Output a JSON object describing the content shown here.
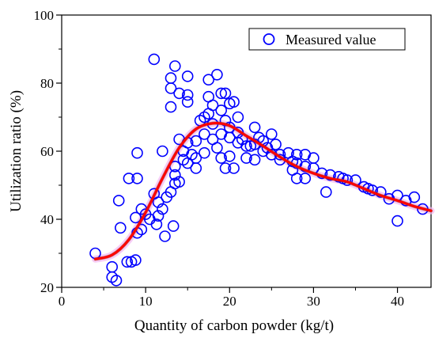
{
  "chart_data": {
    "type": "scatter",
    "title": "",
    "xlabel": "Quantity of carbon powder (kg/t)",
    "ylabel": "Utilization ratio (%)",
    "xlim": [
      0,
      44
    ],
    "ylim": [
      20,
      100
    ],
    "xticks": [
      "0",
      "10",
      "20",
      "30",
      "40"
    ],
    "yticks": [
      "20",
      "40",
      "60",
      "80",
      "100"
    ],
    "grid": false,
    "legend_position": "top-right",
    "colors": {
      "points": "#0000ff",
      "fit": "#ff0000",
      "band": "#f4b6f2"
    },
    "series": [
      {
        "name": "Measured value",
        "points": [
          [
            4,
            30
          ],
          [
            6,
            26
          ],
          [
            6,
            23
          ],
          [
            6.5,
            22
          ],
          [
            6.8,
            45.5
          ],
          [
            7,
            37.5
          ],
          [
            7.8,
            27.5
          ],
          [
            8,
            52
          ],
          [
            8.3,
            27.5
          ],
          [
            8.8,
            28
          ],
          [
            8.8,
            40.5
          ],
          [
            9,
            52
          ],
          [
            9,
            59.5
          ],
          [
            9,
            36
          ],
          [
            9.5,
            37
          ],
          [
            9.5,
            43
          ],
          [
            10,
            41.5
          ],
          [
            10.5,
            40
          ],
          [
            11,
            87
          ],
          [
            11,
            47.5
          ],
          [
            11.3,
            38.5
          ],
          [
            11.5,
            41
          ],
          [
            11.5,
            45
          ],
          [
            12,
            60
          ],
          [
            12,
            43
          ],
          [
            12.3,
            35
          ],
          [
            12.5,
            46.5
          ],
          [
            13,
            81.5
          ],
          [
            13,
            78.5
          ],
          [
            13,
            73
          ],
          [
            13,
            48
          ],
          [
            13.3,
            38
          ],
          [
            13.5,
            85
          ],
          [
            13.5,
            53
          ],
          [
            13.5,
            50.5
          ],
          [
            13.5,
            55.5
          ],
          [
            14,
            77
          ],
          [
            14,
            63.5
          ],
          [
            14,
            51
          ],
          [
            14.5,
            57.5
          ],
          [
            14.5,
            60
          ],
          [
            15,
            82
          ],
          [
            15,
            76.5
          ],
          [
            15,
            74.5
          ],
          [
            15,
            62.5
          ],
          [
            15,
            56.5
          ],
          [
            15.5,
            59
          ],
          [
            16,
            63
          ],
          [
            16,
            58
          ],
          [
            16,
            55
          ],
          [
            16.5,
            69
          ],
          [
            17,
            70
          ],
          [
            17,
            65
          ],
          [
            17,
            59.5
          ],
          [
            17.5,
            81
          ],
          [
            17.5,
            76
          ],
          [
            17.5,
            71
          ],
          [
            18,
            68
          ],
          [
            18,
            73.5
          ],
          [
            18,
            63.5
          ],
          [
            18.5,
            82.5
          ],
          [
            18.5,
            61
          ],
          [
            19,
            77
          ],
          [
            19,
            72
          ],
          [
            19,
            65
          ],
          [
            19,
            58
          ],
          [
            19.5,
            77
          ],
          [
            19.5,
            69
          ],
          [
            19.5,
            55
          ],
          [
            20,
            74
          ],
          [
            20,
            67
          ],
          [
            20,
            64
          ],
          [
            20,
            58.5
          ],
          [
            20.5,
            74.5
          ],
          [
            20.5,
            55
          ],
          [
            21,
            70
          ],
          [
            21,
            65.5
          ],
          [
            21,
            62.5
          ],
          [
            21.5,
            63.5
          ],
          [
            22,
            61.5
          ],
          [
            22,
            58
          ],
          [
            22.5,
            61.5
          ],
          [
            23,
            67
          ],
          [
            23,
            62
          ],
          [
            23,
            57.5
          ],
          [
            23.5,
            64
          ],
          [
            24,
            63
          ],
          [
            24,
            60
          ],
          [
            24.5,
            61
          ],
          [
            25,
            65
          ],
          [
            25,
            59
          ],
          [
            25.5,
            62
          ],
          [
            26,
            59
          ],
          [
            26,
            57.5
          ],
          [
            27,
            59.5
          ],
          [
            27.5,
            57
          ],
          [
            27.5,
            54.5
          ],
          [
            28,
            59
          ],
          [
            28,
            56.5
          ],
          [
            28,
            52
          ],
          [
            29,
            59
          ],
          [
            29,
            55.5
          ],
          [
            29,
            52
          ],
          [
            30,
            58
          ],
          [
            30,
            55
          ],
          [
            31,
            53.5
          ],
          [
            31.5,
            48
          ],
          [
            32,
            53
          ],
          [
            33,
            52.5
          ],
          [
            33.5,
            52
          ],
          [
            34,
            51.5
          ],
          [
            35,
            51.5
          ],
          [
            36,
            49.5
          ],
          [
            36.5,
            49
          ],
          [
            37,
            48.5
          ],
          [
            38,
            48
          ],
          [
            39,
            46
          ],
          [
            40,
            39.5
          ],
          [
            40,
            47
          ],
          [
            41,
            45.5
          ],
          [
            42,
            46.5
          ],
          [
            43,
            43
          ]
        ]
      },
      {
        "name": "fit",
        "points": [
          [
            4,
            28.3
          ],
          [
            6,
            29.5
          ],
          [
            8,
            34
          ],
          [
            10,
            42
          ],
          [
            12,
            52
          ],
          [
            14,
            61
          ],
          [
            16,
            66.5
          ],
          [
            18,
            68.2
          ],
          [
            20,
            67.5
          ],
          [
            22,
            64.5
          ],
          [
            24,
            61.5
          ],
          [
            26,
            58.3
          ],
          [
            28,
            55.5
          ],
          [
            30,
            53.5
          ],
          [
            32,
            52
          ],
          [
            34,
            51
          ],
          [
            36,
            49
          ],
          [
            38,
            47
          ],
          [
            40,
            45.5
          ],
          [
            42,
            43.8
          ],
          [
            44,
            42.5
          ]
        ]
      }
    ]
  }
}
